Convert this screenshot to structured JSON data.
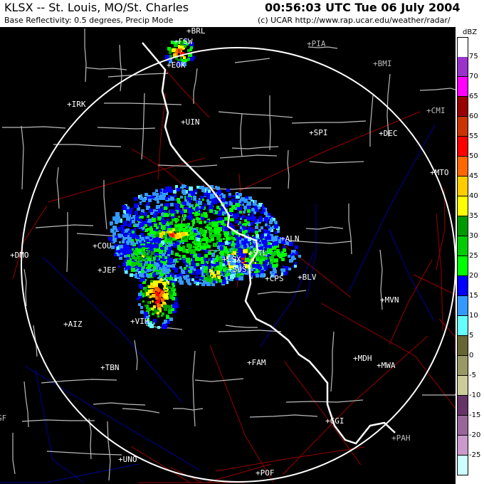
{
  "header": {
    "title": "KLSX -- St. Louis, MO/St. Charles",
    "subtitle": "Base Reflectivity: 0.5 degrees, Precip Mode",
    "timestamp": "00:56:03 UTC Tue 06 July 2004",
    "credit": "(c) UCAR  http://www.rap.ucar.edu/weather/radar/"
  },
  "legend": {
    "unit": "dBZ",
    "colors": [
      "#ffffff",
      "#9933cc",
      "#ff00ff",
      "#990000",
      "#cc3300",
      "#ff0000",
      "#ff6600",
      "#ffcc00",
      "#ffff00",
      "#009900",
      "#00cc00",
      "#00ff00",
      "#0000ff",
      "#3399ff",
      "#66ffff",
      "#666633",
      "#999966",
      "#cccc99",
      "#663366",
      "#996699",
      "#cc99cc",
      "#ccffff"
    ],
    "labels": [
      "75",
      "70",
      "65",
      "60",
      "55",
      "50",
      "45",
      "40",
      "35",
      "30",
      "25",
      "20",
      "15",
      "10",
      "5",
      "0",
      "-5",
      "-10",
      "-15",
      "-20",
      "-25"
    ]
  },
  "map": {
    "range_ring_color": "#ffffff",
    "county_color": "#bbbbbb",
    "highway_color": "#990000",
    "river_color": "#000099",
    "cities": [
      {
        "code": "BRL",
        "gray": false
      },
      {
        "code": "FSW",
        "gray": false
      },
      {
        "code": "EOK",
        "gray": false
      },
      {
        "code": "PIA",
        "gray": true
      },
      {
        "code": "BMI",
        "gray": true
      },
      {
        "code": "IRK",
        "gray": false
      },
      {
        "code": "UIN",
        "gray": false
      },
      {
        "code": "CMI",
        "gray": true
      },
      {
        "code": "SPI",
        "gray": false
      },
      {
        "code": "DEC",
        "gray": false
      },
      {
        "code": "MTO",
        "gray": false
      },
      {
        "code": "COU",
        "gray": false
      },
      {
        "code": "DMO",
        "gray": false
      },
      {
        "code": "JEF",
        "gray": false
      },
      {
        "code": "ALN",
        "gray": false
      },
      {
        "code": "STL",
        "gray": false
      },
      {
        "code": "LSX",
        "gray": false
      },
      {
        "code": "SUS",
        "gray": false
      },
      {
        "code": "CPS",
        "gray": false
      },
      {
        "code": "BLV",
        "gray": false
      },
      {
        "code": "MVN",
        "gray": false
      },
      {
        "code": "AIZ",
        "gray": false
      },
      {
        "code": "VIH",
        "gray": false
      },
      {
        "code": "FAM",
        "gray": false
      },
      {
        "code": "MDH",
        "gray": false
      },
      {
        "code": "MWA",
        "gray": false
      },
      {
        "code": "TBN",
        "gray": false
      },
      {
        "code": "CGI",
        "gray": false
      },
      {
        "code": "PAH",
        "gray": true
      },
      {
        "code": "UNO",
        "gray": false
      },
      {
        "code": "POF",
        "gray": false
      },
      {
        "code": "GF",
        "gray": true
      }
    ]
  }
}
